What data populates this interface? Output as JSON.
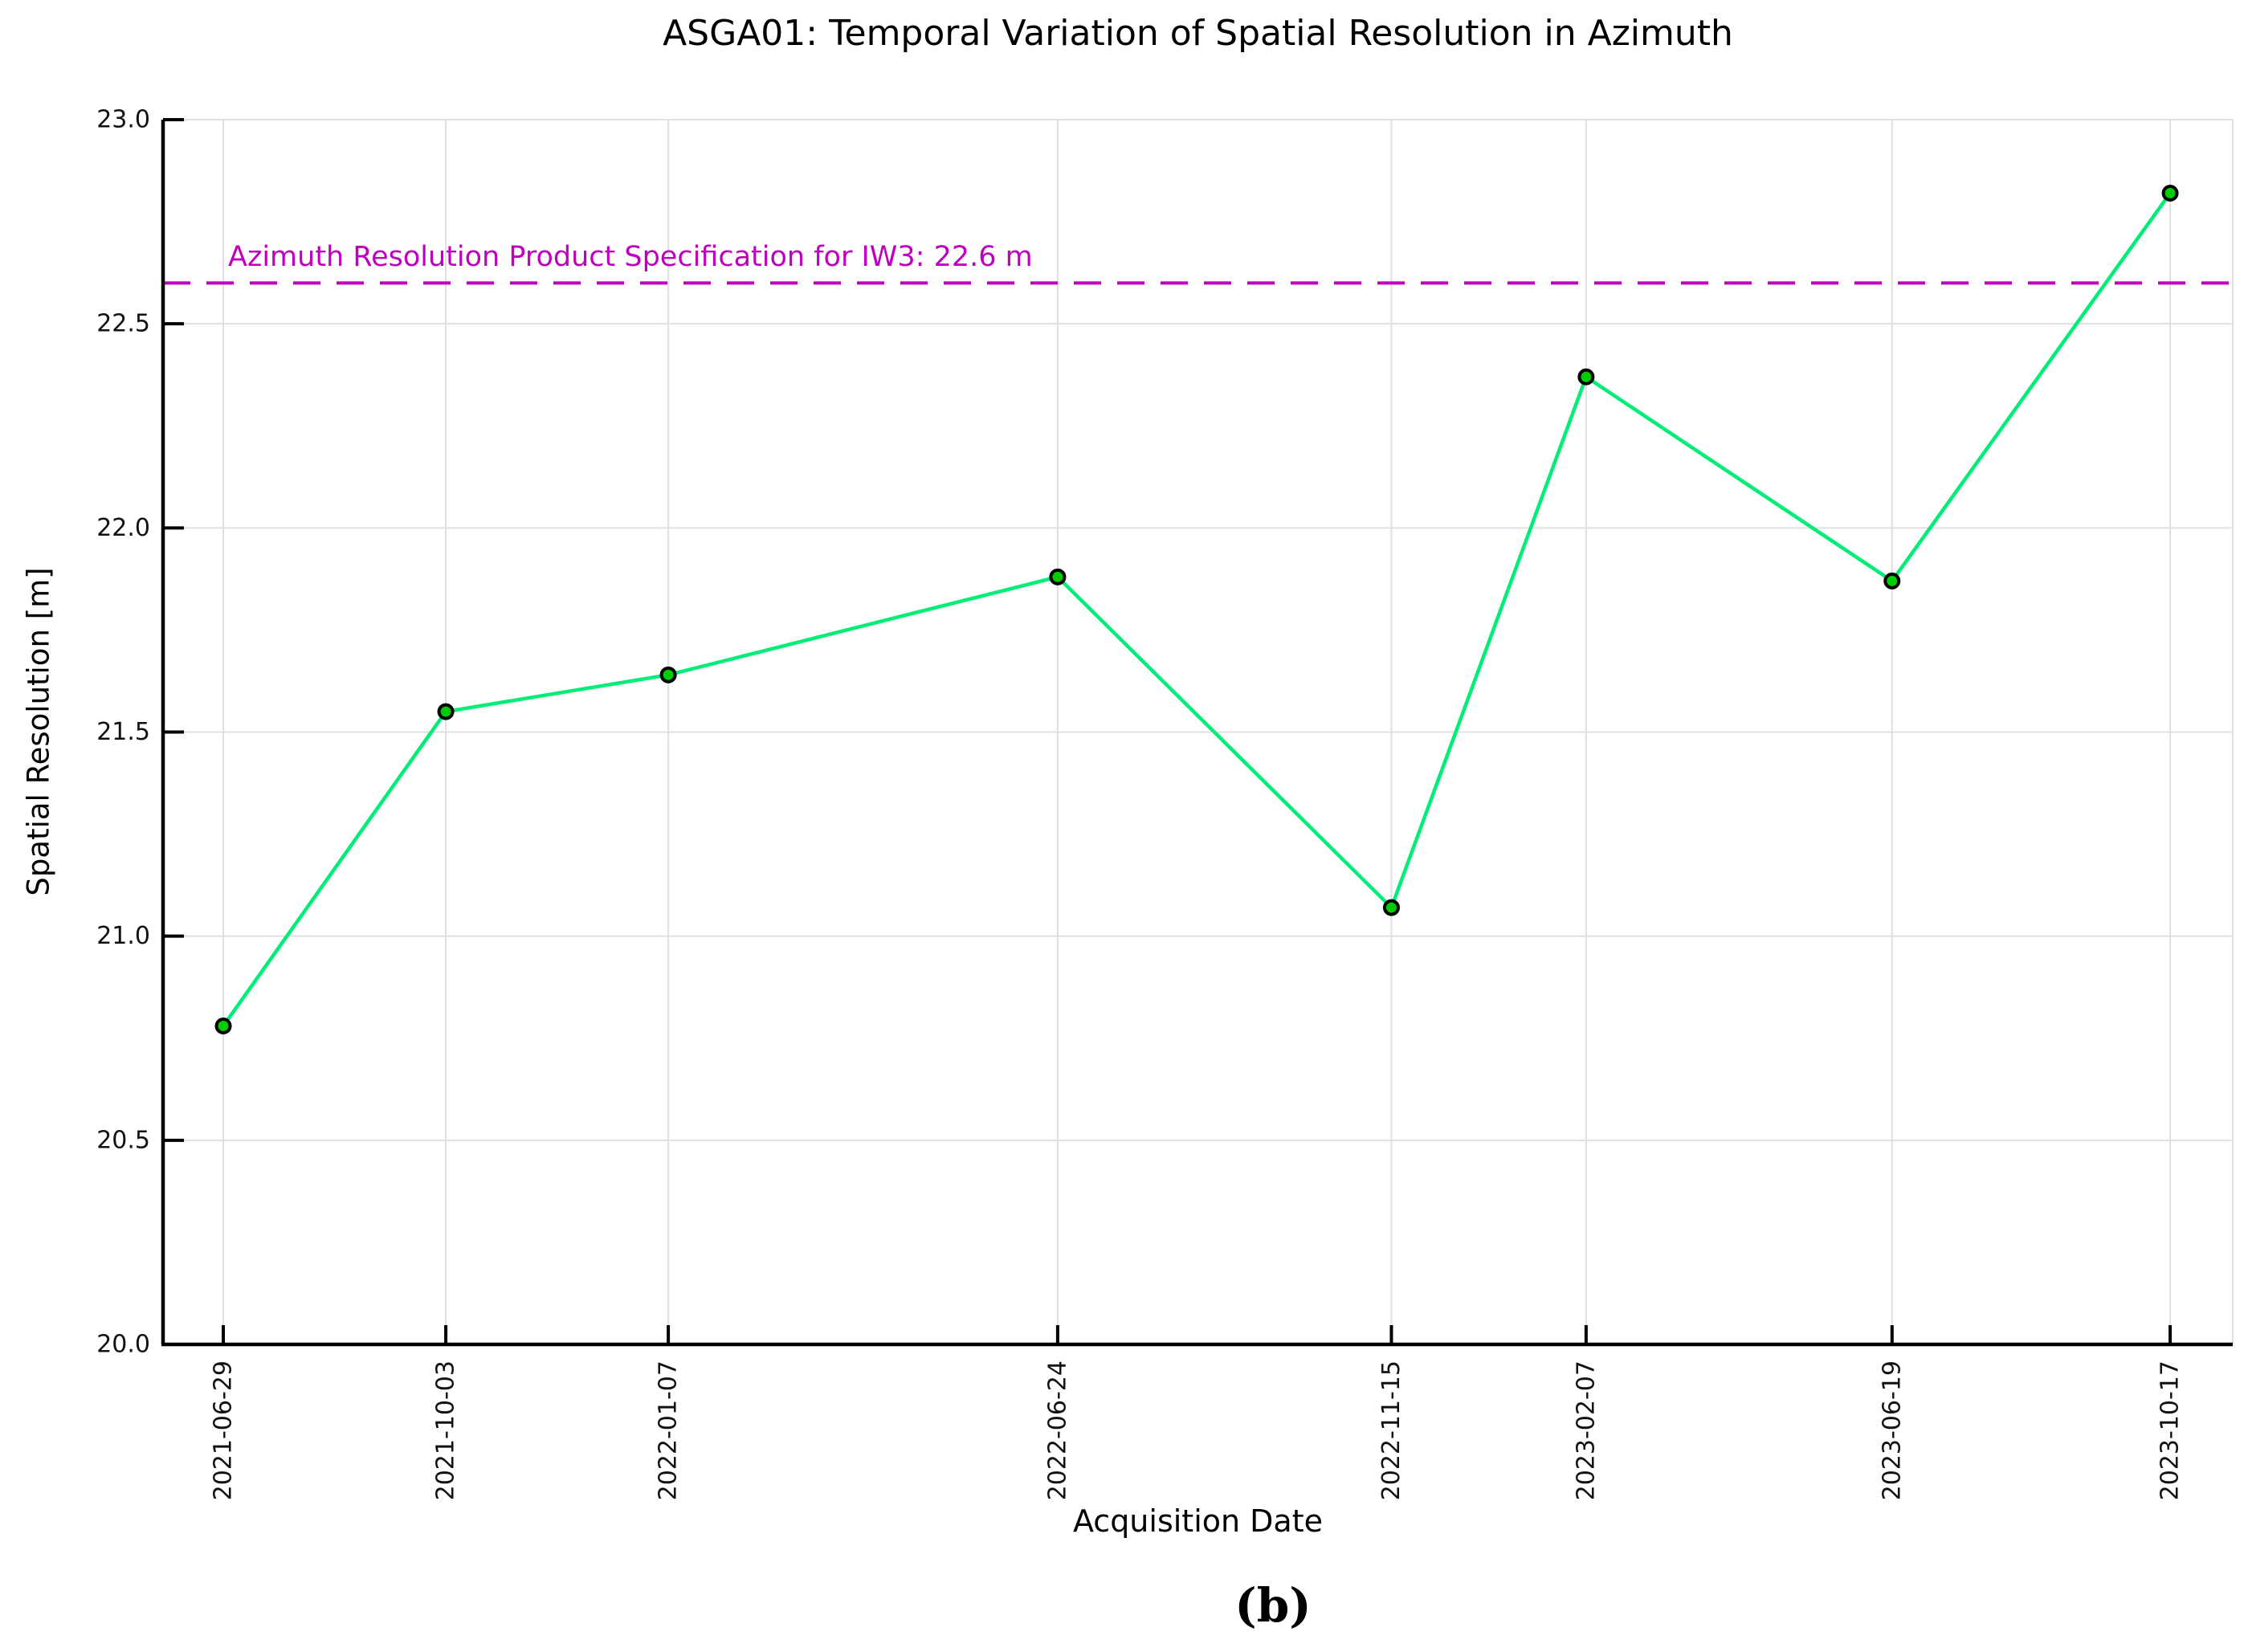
{
  "figure": {
    "caption": "(b)"
  },
  "chart_data": {
    "type": "line",
    "title": "ASGA01: Temporal Variation of Spatial Resolution in Azimuth",
    "xlabel": "Acquisition Date",
    "ylabel": "Spatial Resolution [m]",
    "x": [
      "2021-06-29",
      "2021-10-03",
      "2022-01-07",
      "2022-06-24",
      "2022-11-15",
      "2023-02-07",
      "2023-06-19",
      "2023-10-17"
    ],
    "y": [
      20.78,
      21.55,
      21.64,
      21.88,
      21.07,
      22.37,
      21.87,
      22.82
    ],
    "ylim": [
      20.0,
      23.0
    ],
    "yticks": [
      20.0,
      20.5,
      21.0,
      21.5,
      22.0,
      22.5,
      23.0
    ],
    "xlim_dates": [
      "2021-06-03",
      "2023-11-13"
    ],
    "grid": true,
    "line_color": "#00ee77",
    "marker_color": "#00cc00",
    "marker_edge_color": "#000000",
    "grid_color": "#e0e0e0",
    "spine_color": "#000000",
    "reference_line": {
      "value": 22.6,
      "label": "Azimuth Resolution Product Specification for IW3: 22.6 m",
      "color": "#bf00bf"
    }
  }
}
